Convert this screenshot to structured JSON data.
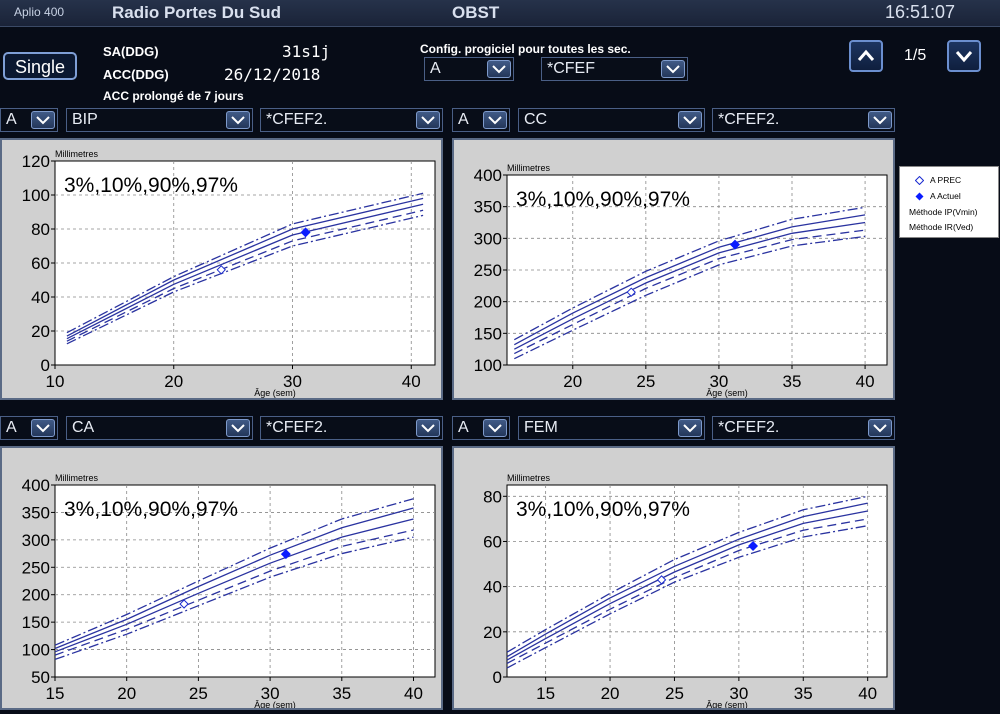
{
  "header": {
    "model": "Aplio 400",
    "institution": "Radio Portes Du Sud",
    "mode": "OBST",
    "time": "16:51:07"
  },
  "patient": {
    "single_label": "Single",
    "sa_label": "SA(DDG)",
    "sa_value": "31s1j",
    "acc_label": "ACC(DDG)",
    "acc_value": "26/12/2018",
    "acc_note": "ACC prolongé de 7 jours"
  },
  "config": {
    "label": "Config. progiciel pour toutes les sec.",
    "fetus": "A",
    "table": "*CFEF"
  },
  "pager": {
    "page": "1/5"
  },
  "legend": {
    "prev": "A PREC",
    "actuel": "A Actuel",
    "ip": "Méthode IP(Vmin)",
    "ir": "Méthode IR(Ved)"
  },
  "panels": [
    {
      "fetus": "A",
      "measure": "BIP",
      "table": "*CFEF2."
    },
    {
      "fetus": "A",
      "measure": "CC",
      "table": "*CFEF2."
    },
    {
      "fetus": "A",
      "measure": "CA",
      "table": "*CFEF2."
    },
    {
      "fetus": "A",
      "measure": "FEM",
      "table": "*CFEF2."
    }
  ],
  "colors": {
    "curve": "#2a33a0",
    "current_point": "#0a1cff",
    "plot_bg": "#ffffff",
    "panel_bg": "#d0d0d0"
  },
  "chart_data": [
    {
      "type": "line",
      "title": "3%,10%,90%,97%",
      "ylabel": "Millimetres",
      "xlabel": "Âge (sem)",
      "xlim": [
        10,
        42
      ],
      "ylim": [
        0,
        120
      ],
      "xticks": [
        10,
        20,
        30,
        40
      ],
      "yticks": [
        0,
        20,
        40,
        60,
        80,
        100,
        120
      ],
      "grid": true,
      "series": [
        {
          "values": [
            [
              11,
              12.5
            ],
            [
              20,
              43
            ],
            [
              30,
              70
            ],
            [
              41,
              88
            ]
          ]
        },
        {
          "values": [
            [
              11,
              14
            ],
            [
              20,
              45
            ],
            [
              30,
              73
            ],
            [
              41,
              91
            ]
          ]
        },
        {
          "values": [
            [
              11,
              17
            ],
            [
              20,
              50
            ],
            [
              30,
              80
            ],
            [
              41,
              98
            ]
          ]
        },
        {
          "values": [
            [
              11,
              19
            ],
            [
              20,
              52
            ],
            [
              30,
              83
            ],
            [
              41,
              101
            ]
          ]
        }
      ],
      "prev_point": [
        24,
        56
      ],
      "current_point": [
        31.1,
        78
      ]
    },
    {
      "type": "line",
      "title": "3%,10%,90%,97%",
      "ylabel": "Millimetres",
      "xlabel": "Âge (sem)",
      "xlim": [
        15.5,
        41.5
      ],
      "ylim": [
        100,
        400
      ],
      "xticks": [
        20,
        25,
        30,
        35,
        40
      ],
      "yticks": [
        100,
        150,
        200,
        250,
        300,
        350,
        400
      ],
      "grid": true,
      "series": [
        {
          "values": [
            [
              16,
              110
            ],
            [
              20,
              155
            ],
            [
              25,
              210
            ],
            [
              30,
              258
            ],
            [
              35,
              288
            ],
            [
              40,
              303
            ]
          ]
        },
        {
          "values": [
            [
              16,
              118
            ],
            [
              20,
              164
            ],
            [
              25,
              221
            ],
            [
              30,
              268
            ],
            [
              35,
              298
            ],
            [
              40,
              313
            ]
          ]
        },
        {
          "values": [
            [
              16,
              132
            ],
            [
              20,
              182
            ],
            [
              25,
              238
            ],
            [
              30,
              286
            ],
            [
              35,
              318
            ],
            [
              40,
              337
            ]
          ]
        },
        {
          "values": [
            [
              16,
              140
            ],
            [
              20,
              190
            ],
            [
              25,
              248
            ],
            [
              30,
              296
            ],
            [
              35,
              330
            ],
            [
              40,
              349
            ]
          ]
        }
      ],
      "prev_point": [
        24,
        215
      ],
      "current_point": [
        31.1,
        290
      ]
    },
    {
      "type": "line",
      "title": "3%,10%,90%,97%",
      "ylabel": "Millimetres",
      "xlabel": "Âge (sem)",
      "xlim": [
        15,
        41.5
      ],
      "ylim": [
        50,
        400
      ],
      "xticks": [
        15,
        20,
        25,
        30,
        35,
        40
      ],
      "yticks": [
        50,
        100,
        150,
        200,
        250,
        300,
        350,
        400
      ],
      "grid": true,
      "series": [
        {
          "values": [
            [
              15,
              82
            ],
            [
              20,
              128
            ],
            [
              25,
              180
            ],
            [
              30,
              232
            ],
            [
              35,
              275
            ],
            [
              40,
              305
            ]
          ]
        },
        {
          "values": [
            [
              15,
              90
            ],
            [
              20,
              137
            ],
            [
              25,
              190
            ],
            [
              30,
              243
            ],
            [
              35,
              288
            ],
            [
              40,
              318
            ]
          ]
        },
        {
          "values": [
            [
              15,
              102
            ],
            [
              20,
              155
            ],
            [
              25,
              215
            ],
            [
              30,
              272
            ],
            [
              35,
              322
            ],
            [
              40,
              358
            ]
          ]
        },
        {
          "values": [
            [
              15,
              108
            ],
            [
              20,
              164
            ],
            [
              25,
              225
            ],
            [
              30,
              285
            ],
            [
              35,
              338
            ],
            [
              40,
              375
            ]
          ]
        }
      ],
      "prev_point": [
        24,
        183
      ],
      "current_point": [
        31.1,
        274
      ]
    },
    {
      "type": "line",
      "title": "3%,10%,90%,97%",
      "ylabel": "Millimetres",
      "xlabel": "Âge (sem)",
      "xlim": [
        12,
        41.5
      ],
      "ylim": [
        0,
        85
      ],
      "xticks": [
        15,
        20,
        25,
        30,
        35,
        40
      ],
      "yticks": [
        0,
        20,
        40,
        60,
        80
      ],
      "grid": true,
      "series": [
        {
          "values": [
            [
              12,
              4
            ],
            [
              15,
              13
            ],
            [
              20,
              28
            ],
            [
              25,
              42
            ],
            [
              30,
              53
            ],
            [
              35,
              62
            ],
            [
              40,
              67
            ]
          ]
        },
        {
          "values": [
            [
              12,
              6
            ],
            [
              15,
              15
            ],
            [
              20,
              30
            ],
            [
              25,
              44
            ],
            [
              30,
              56
            ],
            [
              35,
              65
            ],
            [
              40,
              70
            ]
          ]
        },
        {
          "values": [
            [
              12,
              9
            ],
            [
              15,
              19
            ],
            [
              20,
              35
            ],
            [
              25,
              49
            ],
            [
              30,
              61
            ],
            [
              35,
              71
            ],
            [
              40,
              77
            ]
          ]
        },
        {
          "values": [
            [
              12,
              11
            ],
            [
              15,
              21
            ],
            [
              20,
              37
            ],
            [
              25,
              52
            ],
            [
              30,
              64
            ],
            [
              35,
              74
            ],
            [
              40,
              80
            ]
          ]
        }
      ],
      "prev_point": [
        24,
        43
      ],
      "current_point": [
        31.1,
        58
      ]
    }
  ]
}
